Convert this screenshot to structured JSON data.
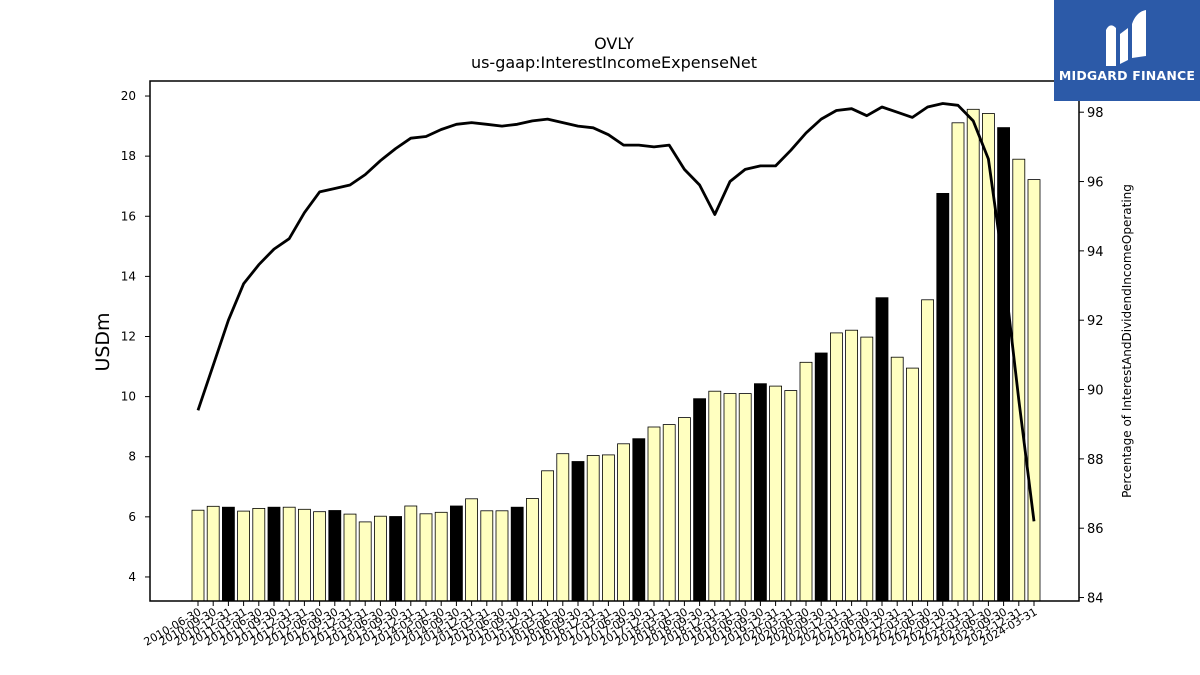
{
  "chart_data": {
    "type": "bar+line",
    "title": "OVLY",
    "subtitle": "us-gaap:InterestIncomeExpenseNet",
    "ylabel": "USDm",
    "y2label": "Percentage of InterestAndDividendIncomeOperating",
    "ylim": [
      3.2,
      20.5
    ],
    "y2lim": [
      83.9,
      98.9
    ],
    "yticks": [
      4,
      6,
      8,
      10,
      12,
      14,
      16,
      18,
      20
    ],
    "y2ticks": [
      84,
      86,
      88,
      90,
      92,
      94,
      96,
      98
    ],
    "categories": [
      "2010-06-30",
      "2010-09-30",
      "2010-12-31",
      "2011-03-31",
      "2011-06-30",
      "2011-09-30",
      "2011-12-31",
      "2012-03-31",
      "2012-06-30",
      "2012-09-30",
      "2012-12-31",
      "2013-03-31",
      "2013-06-30",
      "2013-09-30",
      "2013-12-31",
      "2014-03-31",
      "2014-06-30",
      "2014-09-30",
      "2014-12-31",
      "2015-03-31",
      "2015-06-30",
      "2015-09-30",
      "2015-12-31",
      "2016-03-31",
      "2016-06-30",
      "2016-09-30",
      "2016-12-31",
      "2017-03-31",
      "2017-06-30",
      "2017-09-30",
      "2017-12-31",
      "2018-03-31",
      "2018-06-30",
      "2018-09-30",
      "2018-12-31",
      "2019-03-31",
      "2019-06-30",
      "2019-09-30",
      "2019-12-31",
      "2020-03-31",
      "2020-06-30",
      "2020-09-30",
      "2020-12-31",
      "2021-03-31",
      "2021-06-30",
      "2021-09-30",
      "2021-12-31",
      "2022-03-31",
      "2022-06-30",
      "2022-09-30",
      "2022-12-31",
      "2023-03-31",
      "2023-06-30",
      "2023-09-30",
      "2023-12-31",
      "2024-03-31"
    ],
    "series": [
      {
        "type": "bar",
        "axis": "left",
        "values": [
          6.22,
          6.35,
          6.32,
          6.19,
          6.28,
          6.32,
          6.32,
          6.25,
          6.17,
          6.21,
          6.09,
          5.83,
          6.02,
          6.01,
          6.36,
          6.1,
          6.15,
          6.36,
          6.6,
          6.2,
          6.2,
          6.32,
          6.61,
          7.53,
          8.1,
          7.84,
          8.04,
          8.06,
          8.43,
          8.6,
          8.99,
          9.07,
          9.3,
          9.93,
          10.18,
          10.1,
          10.1,
          10.43,
          10.35,
          10.2,
          11.14,
          11.45,
          12.12,
          12.21,
          11.98,
          13.29,
          11.31,
          10.95,
          13.22,
          16.76,
          19.11,
          19.56,
          19.42,
          18.95,
          17.9,
          17.22
        ],
        "highlight": [
          false,
          false,
          true,
          false,
          false,
          true,
          false,
          false,
          false,
          true,
          false,
          false,
          false,
          true,
          false,
          false,
          false,
          true,
          false,
          false,
          false,
          true,
          false,
          false,
          false,
          true,
          false,
          false,
          false,
          true,
          false,
          false,
          false,
          true,
          false,
          false,
          false,
          true,
          false,
          false,
          false,
          true,
          false,
          false,
          false,
          true,
          false,
          false,
          false,
          true,
          false,
          false,
          false,
          true,
          false,
          false
        ]
      },
      {
        "type": "line",
        "axis": "right",
        "values": [
          89.4,
          90.7,
          92.0,
          93.05,
          93.6,
          94.05,
          94.35,
          95.1,
          95.7,
          95.8,
          95.9,
          96.2,
          96.6,
          96.95,
          97.25,
          97.3,
          97.5,
          97.65,
          97.7,
          97.65,
          97.6,
          97.65,
          97.75,
          97.8,
          97.7,
          97.6,
          97.55,
          97.35,
          97.05,
          97.05,
          97.0,
          97.05,
          96.35,
          95.9,
          95.05,
          96.0,
          96.35,
          96.45,
          96.45,
          96.9,
          97.4,
          97.8,
          98.05,
          98.1,
          97.9,
          98.15,
          98.0,
          97.85,
          98.15,
          98.25,
          98.2,
          97.75,
          96.65,
          93.5,
          89.7,
          86.2
        ]
      }
    ],
    "colors": {
      "bar": "#ffffc0",
      "bar_highlight": "#000000",
      "line": "#000000"
    }
  },
  "branding": {
    "logo_text": "MIDGARD FINANCE"
  }
}
